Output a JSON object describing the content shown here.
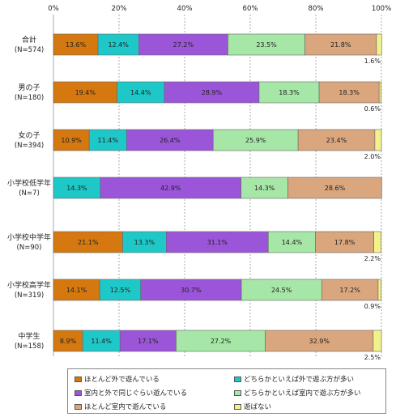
{
  "colors": {
    "series": [
      "#d4780f",
      "#1ec8c8",
      "#9b55d9",
      "#a6e6a6",
      "#d9a67e",
      "#f2f28c"
    ],
    "bar_border": "#666666",
    "grid": "#aaaaaa"
  },
  "chart_data": {
    "type": "bar",
    "orientation": "horizontal",
    "stacked": true,
    "xlim": [
      0,
      100
    ],
    "x_ticks": [
      "0%",
      "20%",
      "40%",
      "60%",
      "80%",
      "100%"
    ],
    "categories": [
      {
        "label": "合計",
        "n": "(N=574)"
      },
      {
        "label": "男の子",
        "n": "(N=180)"
      },
      {
        "label": "女の子",
        "n": "(N=394)"
      },
      {
        "label": "小学校低学年",
        "n": "(N=7)"
      },
      {
        "label": "小学校中学年",
        "n": "(N=90)"
      },
      {
        "label": "小学校高学年",
        "n": "(N=319)"
      },
      {
        "label": "中学生",
        "n": "(N=158)"
      }
    ],
    "series": [
      {
        "name": "ほとんど外で遊んでいる",
        "values": [
          13.6,
          19.4,
          10.9,
          0,
          21.1,
          14.1,
          8.9
        ],
        "labels": [
          "13.6%",
          "19.4%",
          "10.9%",
          "",
          "21.1%",
          "14.1%",
          "8.9%"
        ]
      },
      {
        "name": "どちらかといえば外で遊ぶ方が多い",
        "values": [
          12.4,
          14.4,
          11.4,
          14.3,
          13.3,
          12.5,
          11.4
        ],
        "labels": [
          "12.4%",
          "14.4%",
          "11.4%",
          "14.3%",
          "13.3%",
          "12.5%",
          "11.4%"
        ]
      },
      {
        "name": "室内と外で同じぐらい遊んでいる",
        "values": [
          27.2,
          28.9,
          26.4,
          42.9,
          31.1,
          30.7,
          17.1
        ],
        "labels": [
          "27.2%",
          "28.9%",
          "26.4%",
          "42.9%",
          "31.1%",
          "30.7%",
          "17.1%"
        ]
      },
      {
        "name": "どちらかといえば室内で遊ぶ方が多い",
        "values": [
          23.5,
          18.3,
          25.9,
          14.3,
          14.4,
          24.5,
          27.2
        ],
        "labels": [
          "23.5%",
          "18.3%",
          "25.9%",
          "14.3%",
          "14.4%",
          "24.5%",
          "27.2%"
        ]
      },
      {
        "name": "ほとんど室内で遊んでいる",
        "values": [
          21.8,
          18.3,
          23.4,
          28.6,
          17.8,
          17.2,
          32.9
        ],
        "labels": [
          "21.8%",
          "18.3%",
          "23.4%",
          "28.6%",
          "17.8%",
          "17.2%",
          "32.9%"
        ]
      },
      {
        "name": "遊ばない",
        "values": [
          1.6,
          0.6,
          2.0,
          0,
          2.2,
          0.9,
          2.5
        ],
        "labels": [
          "1.6%",
          "0.6%",
          "2.0%",
          "",
          "2.2%",
          "0.9%",
          "2.5%"
        ]
      }
    ]
  }
}
